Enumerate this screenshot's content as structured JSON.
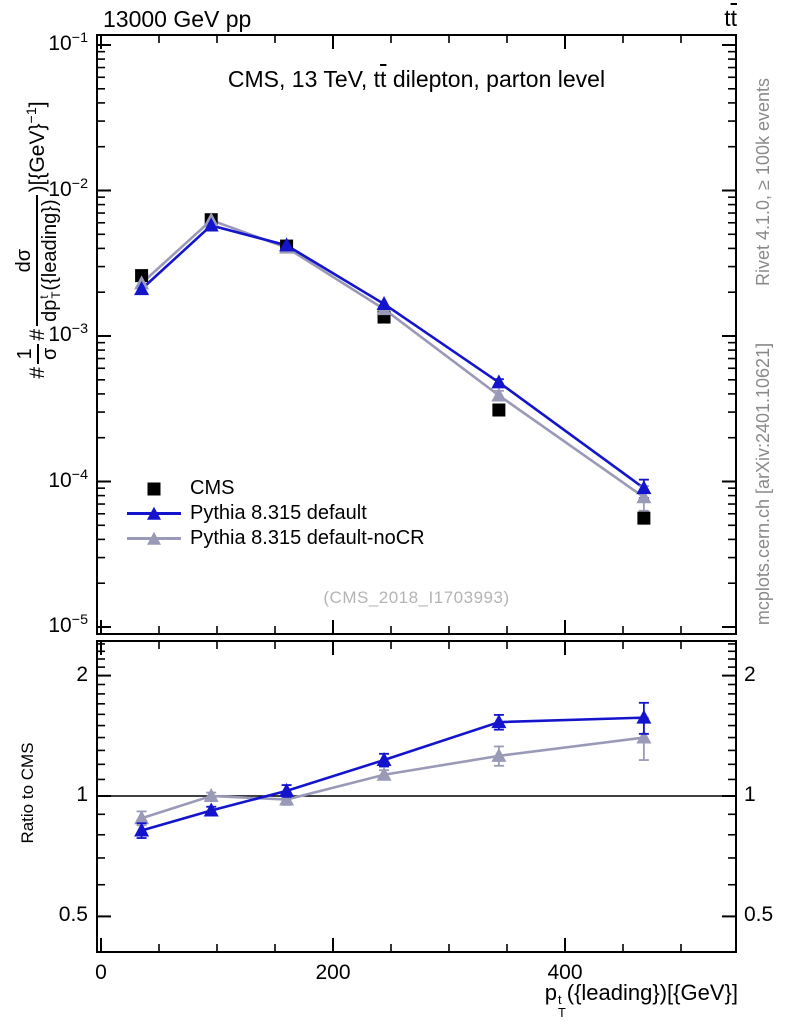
{
  "header": {
    "left_title": "13000 GeV pp",
    "right_process_t": "t",
    "right_process_tbar": "t"
  },
  "panel_title": {
    "pre": "CMS, 13 TeV, t",
    "tbar": "t",
    "post": " dilepton, parton level"
  },
  "watermark": "(CMS_2018_I1703993)",
  "right_margin_notes": {
    "top": "Rivet 4.1.0, ≥ 100k events",
    "bottom": "mcplots.cern.ch [arXiv:2401.10621]"
  },
  "axes": {
    "x_label": {
      "base": "p",
      "sup": "t",
      "sub": "T",
      "rest": "({leading})[{GeV}]"
    },
    "top_y_label": {
      "hash1": "#",
      "frac1_num": "1",
      "frac1_den": "σ",
      "hash2": "#",
      "frac2_num": "dσ",
      "frac2_den_base": "dp",
      "frac2_den_sup": "t",
      "frac2_den_sub": "T",
      "frac2_den_rest": "({leading})",
      "close": ")[{GeV}",
      "close_exp": "−1",
      "close_end": "]"
    },
    "ratio_y_label": "Ratio to CMS",
    "x_ticks": [
      {
        "label": "0",
        "value": 0
      },
      {
        "label": "200",
        "value": 200
      },
      {
        "label": "400",
        "value": 400
      }
    ],
    "top_y_ticks": [
      {
        "base": "10",
        "exp": "−1",
        "value": 0.1
      },
      {
        "base": "10",
        "exp": "−2",
        "value": 0.01
      },
      {
        "base": "10",
        "exp": "−3",
        "value": 0.001
      },
      {
        "base": "10",
        "exp": "−4",
        "value": 0.0001
      },
      {
        "base": "10",
        "exp": "−5",
        "value": 1e-05
      }
    ],
    "ratio_y_ticks": [
      {
        "label": "2",
        "value": 2
      },
      {
        "label": "1",
        "value": 1
      },
      {
        "label": "0.5",
        "value": 0.5
      }
    ]
  },
  "chart_data": [
    {
      "type": "line",
      "panel": "main",
      "title": "CMS, 13 TeV, tt̄ dilepton, parton level",
      "xlabel": "p_T^t({leading}) [{GeV}]",
      "ylabel": "#1/σ# dσ/dp_T^t({leading}) ) [{GeV}^-1]",
      "xlim": [
        0,
        547
      ],
      "ylog": true,
      "ylim": [
        8.9e-06,
        0.117
      ],
      "grid": false,
      "legend_position": "lower-left",
      "x": [
        35,
        95,
        160,
        244,
        343,
        468
      ],
      "series": [
        {
          "name": "CMS",
          "color": "#000000",
          "marker": "square",
          "line": false,
          "values": [
            0.0026,
            0.0063,
            0.00415,
            0.00135,
            0.00031,
            5.6e-05
          ],
          "yerr": [
            0,
            0,
            0,
            0,
            0,
            0
          ]
        },
        {
          "name": "Pythia 8.315 default",
          "color": "#1414cc",
          "marker": "triangle",
          "line": true,
          "values": [
            0.0021,
            0.00575,
            0.0042,
            0.00166,
            0.00048,
            9e-05
          ],
          "yerr": [
            0,
            0,
            0,
            0,
            2.5e-05,
            1.3e-05
          ]
        },
        {
          "name": "Pythia 8.315 default-noCR",
          "color": "#9a9ab8",
          "marker": "triangle",
          "line": true,
          "values": [
            0.0023,
            0.00625,
            0.00405,
            0.00153,
            0.00039,
            7.8e-05
          ],
          "yerr": [
            0,
            0,
            0,
            0,
            3e-05,
            1.5e-05
          ]
        }
      ]
    },
    {
      "type": "line",
      "panel": "ratio",
      "ylabel": "Ratio to CMS",
      "xlim": [
        0,
        547
      ],
      "ylog": true,
      "ylim": [
        0.41,
        2.44
      ],
      "ref_line": 1,
      "x": [
        35,
        95,
        160,
        244,
        343,
        468
      ],
      "series": [
        {
          "name": "Pythia 8.315 default",
          "color": "#1414cc",
          "marker": "triangle",
          "line": true,
          "values": [
            0.82,
            0.92,
            1.03,
            1.23,
            1.53,
            1.57
          ],
          "yerr": [
            0.035,
            0.02,
            0.035,
            0.045,
            0.065,
            0.14
          ]
        },
        {
          "name": "Pythia 8.315 default-noCR",
          "color": "#9a9ab8",
          "marker": "triangle",
          "line": true,
          "values": [
            0.88,
            1.0,
            0.98,
            1.13,
            1.26,
            1.4
          ],
          "yerr": [
            0.035,
            0.02,
            0.03,
            0.03,
            0.07,
            0.17
          ]
        }
      ]
    }
  ]
}
